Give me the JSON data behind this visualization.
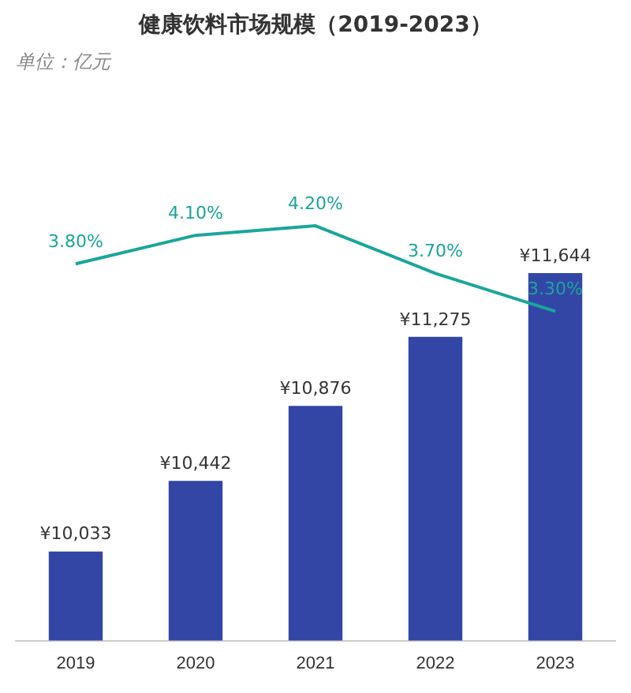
{
  "chart_data": {
    "type": "bar",
    "title": "健康饮料市场规模（2019-2023）",
    "subtitle": "单位：亿元",
    "categories": [
      "2019",
      "2020",
      "2021",
      "2022",
      "2023"
    ],
    "series": [
      {
        "color": "#3346a6",
        "values": [
          10033,
          10442,
          10876,
          11275,
          11644
        ],
        "value_labels": [
          "¥10,033",
          "¥10,442",
          "¥10,876",
          "¥11,275",
          "¥11,644"
        ]
      },
      {
        "type": "line",
        "axis": "y2",
        "color": "#1aa59a",
        "values": [
          3.8,
          4.1,
          4.2,
          3.7,
          3.3
        ],
        "value_labels": [
          "3.80%",
          "4.10%",
          "4.20%",
          "3.70%",
          "3.30%"
        ]
      }
    ],
    "tick_labels": "x",
    "grid": false,
    "legend": false,
    "marker": "none"
  }
}
